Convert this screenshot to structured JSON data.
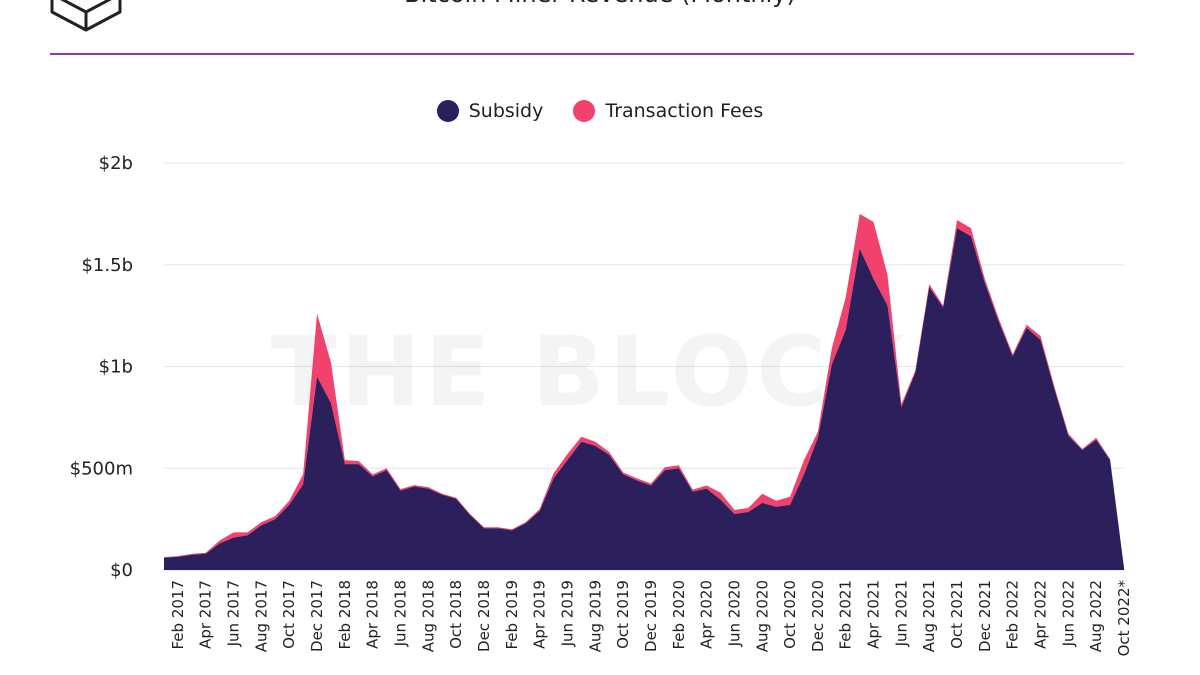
{
  "header": {
    "title": "Bitcoin Miner Revenue (Monthly)",
    "watermark": "THE BLOCK"
  },
  "colors": {
    "subsidy": "#2b1f5c",
    "fees": "#f0426c",
    "accent_rule": "#8a35c6",
    "grid": "#e6e6e6"
  },
  "chart_data": {
    "type": "area",
    "stacked": true,
    "title": "Bitcoin Miner Revenue (Monthly)",
    "legend_position": "top-center",
    "grid": true,
    "ylim": [
      0,
      2000000000
    ],
    "yticks": [
      {
        "value": 0,
        "label": "$0"
      },
      {
        "value": 500000000,
        "label": "$500m"
      },
      {
        "value": 1000000000,
        "label": "$1b"
      },
      {
        "value": 1500000000,
        "label": "$1.5b"
      },
      {
        "value": 2000000000,
        "label": "$2b"
      }
    ],
    "x": [
      "Jan 2017",
      "Feb 2017",
      "Mar 2017",
      "Apr 2017",
      "May 2017",
      "Jun 2017",
      "Jul 2017",
      "Aug 2017",
      "Sep 2017",
      "Oct 2017",
      "Nov 2017",
      "Dec 2017",
      "Jan 2018",
      "Feb 2018",
      "Mar 2018",
      "Apr 2018",
      "May 2018",
      "Jun 2018",
      "Jul 2018",
      "Aug 2018",
      "Sep 2018",
      "Oct 2018",
      "Nov 2018",
      "Dec 2018",
      "Jan 2019",
      "Feb 2019",
      "Mar 2019",
      "Apr 2019",
      "May 2019",
      "Jun 2019",
      "Jul 2019",
      "Aug 2019",
      "Sep 2019",
      "Oct 2019",
      "Nov 2019",
      "Dec 2019",
      "Jan 2020",
      "Feb 2020",
      "Mar 2020",
      "Apr 2020",
      "May 2020",
      "Jun 2020",
      "Jul 2020",
      "Aug 2020",
      "Sep 2020",
      "Oct 2020",
      "Nov 2020",
      "Dec 2020",
      "Jan 2021",
      "Feb 2021",
      "Mar 2021",
      "Apr 2021",
      "May 2021",
      "Jun 2021",
      "Jul 2021",
      "Aug 2021",
      "Sep 2021",
      "Oct 2021",
      "Nov 2021",
      "Dec 2021",
      "Jan 2022",
      "Feb 2022",
      "Mar 2022",
      "Apr 2022",
      "May 2022",
      "Jun 2022",
      "Jul 2022",
      "Aug 2022",
      "Sep 2022",
      "Oct 2022*"
    ],
    "xtick_labels": [
      "Feb 2017",
      "Apr 2017",
      "Jun 2017",
      "Aug 2017",
      "Oct 2017",
      "Dec 2017",
      "Feb 2018",
      "Apr 2018",
      "Jun 2018",
      "Aug 2018",
      "Oct 2018",
      "Dec 2018",
      "Feb 2019",
      "Apr 2019",
      "Jun 2019",
      "Aug 2019",
      "Oct 2019",
      "Dec 2019",
      "Feb 2020",
      "Apr 2020",
      "Jun 2020",
      "Aug 2020",
      "Oct 2020",
      "Dec 2020",
      "Feb 2021",
      "Apr 2021",
      "Jun 2021",
      "Aug 2021",
      "Oct 2021",
      "Dec 2021",
      "Feb 2022",
      "Apr 2022",
      "Jun 2022",
      "Aug 2022",
      "Oct 2022*"
    ],
    "series": [
      {
        "name": "Subsidy",
        "values": [
          60000000,
          65000000,
          75000000,
          80000000,
          130000000,
          160000000,
          170000000,
          220000000,
          250000000,
          320000000,
          420000000,
          950000000,
          820000000,
          520000000,
          520000000,
          460000000,
          490000000,
          390000000,
          410000000,
          400000000,
          370000000,
          350000000,
          270000000,
          205000000,
          205000000,
          195000000,
          230000000,
          290000000,
          450000000,
          540000000,
          630000000,
          610000000,
          565000000,
          470000000,
          440000000,
          415000000,
          490000000,
          500000000,
          385000000,
          400000000,
          345000000,
          275000000,
          285000000,
          330000000,
          310000000,
          320000000,
          470000000,
          650000000,
          1010000000,
          1180000000,
          1580000000,
          1430000000,
          1300000000,
          800000000,
          970000000,
          1390000000,
          1290000000,
          1680000000,
          1640000000,
          1410000000,
          1220000000,
          1050000000,
          1190000000,
          1130000000,
          890000000,
          660000000,
          590000000,
          640000000,
          540000000,
          10000000
        ]
      },
      {
        "name": "Transaction Fees",
        "values": [
          3000000,
          3000000,
          4000000,
          5000000,
          15000000,
          25000000,
          15000000,
          15000000,
          15000000,
          20000000,
          50000000,
          310000000,
          200000000,
          20000000,
          15000000,
          10000000,
          10000000,
          8000000,
          7000000,
          7000000,
          5000000,
          5000000,
          5000000,
          5000000,
          5000000,
          5000000,
          5000000,
          10000000,
          25000000,
          30000000,
          25000000,
          20000000,
          15000000,
          10000000,
          10000000,
          10000000,
          15000000,
          15000000,
          10000000,
          15000000,
          35000000,
          20000000,
          20000000,
          45000000,
          30000000,
          40000000,
          70000000,
          30000000,
          80000000,
          160000000,
          170000000,
          280000000,
          150000000,
          15000000,
          10000000,
          15000000,
          10000000,
          40000000,
          40000000,
          20000000,
          15000000,
          10000000,
          15000000,
          20000000,
          10000000,
          10000000,
          5000000,
          10000000,
          5000000,
          2000000
        ]
      }
    ]
  }
}
